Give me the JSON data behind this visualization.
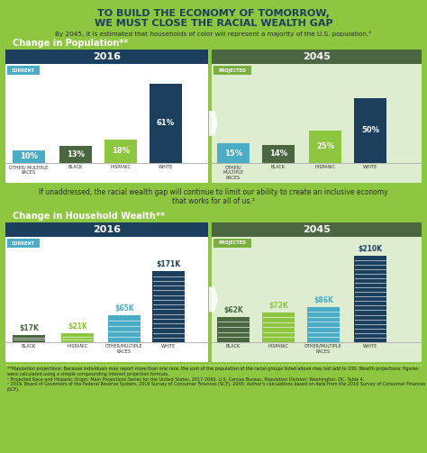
{
  "bg_color": "#8dc63f",
  "title_line1": "TO BUILD THE ECONOMY OF TOMORROW,",
  "title_line2": "WE MUST CLOSE THE RACIAL WEALTH GAP",
  "subtitle": "By 2045, it is estimated that households of color will represent a majority of the U.S. population.²",
  "section1_title": "Change in Population**",
  "section2_title": "Change in Household Wealth**",
  "mid_text": "If unaddressed, the racial wealth gap will continue to limit our ability to create an inclusive economy\nthat works for all of us.³",
  "pop_2016_header": "2016",
  "pop_2045_header": "2045",
  "pop_current_label": "CURRENT",
  "pop_projected_label": "PROJECTED",
  "pop_2016_categories": [
    "OTHER/ MULTIPLE\nRACES",
    "BLACK",
    "HISPANIC",
    "WHITE"
  ],
  "pop_2016_values": [
    10,
    13,
    18,
    61
  ],
  "pop_2016_labels": [
    "10%",
    "13%",
    "18%",
    "61%"
  ],
  "pop_2016_colors": [
    "#4aacc5",
    "#4a6741",
    "#8dc63f",
    "#1c3f5e"
  ],
  "pop_2045_categories": [
    "OTHER/\nMULTIPLE\nRACES",
    "BLACK",
    "HISPANIC",
    "WHITE"
  ],
  "pop_2045_values": [
    15,
    14,
    25,
    50
  ],
  "pop_2045_labels": [
    "15%",
    "14%",
    "25%",
    "50%"
  ],
  "pop_2045_colors": [
    "#4aacc5",
    "#4a6741",
    "#8dc63f",
    "#1c3f5e"
  ],
  "wealth_2016_categories": [
    "BLACK",
    "HISPANIC",
    "OTHER/MULTIPLE\nRACES",
    "WHITE"
  ],
  "wealth_2016_values": [
    17,
    21,
    65,
    171
  ],
  "wealth_2016_labels": [
    "$17K",
    "$21K",
    "$65K",
    "$171K"
  ],
  "wealth_2016_colors": [
    "#4a6741",
    "#8dc63f",
    "#4aacc5",
    "#1c3f5e"
  ],
  "wealth_2045_categories": [
    "BLACK",
    "HISPANIC",
    "OTHER/MULTIPLE\nRACES",
    "WHITE"
  ],
  "wealth_2045_values": [
    62,
    72,
    86,
    210
  ],
  "wealth_2045_labels": [
    "$62K",
    "$72K",
    "$86K",
    "$210K"
  ],
  "wealth_2045_colors": [
    "#4a6741",
    "#8dc63f",
    "#4aacc5",
    "#1c3f5e"
  ],
  "dark_navy": "#1c3f5e",
  "olive_green": "#4a6741",
  "teal": "#4aacc5",
  "lime": "#8dc63f",
  "white": "#ffffff",
  "panel_white": "#ffffff",
  "panel_light": "#deecd0",
  "current_badge": "#4aacc5",
  "projected_badge": "#7ab040",
  "footnote": "**Population projections: Because individuals may report more than one race, the sum of the population of the racial groups listed above may not add to 100. Wealth projections: figures were calculated using a simple compounding interest projection formula.\n² Projected Race and Hispanic Origin: Main Projections Series for the United States, 2017-2060. U.S. Census Bureau, Population Division: Washington, DC, Table 4.\n³ 2019, Board of Governors of the Federal Reserve System, 2016 Survey of Consumer Finances (SCF), 2045: Author's calculations based on data from the 2016 Survey of Consumer Finances (SCF)."
}
